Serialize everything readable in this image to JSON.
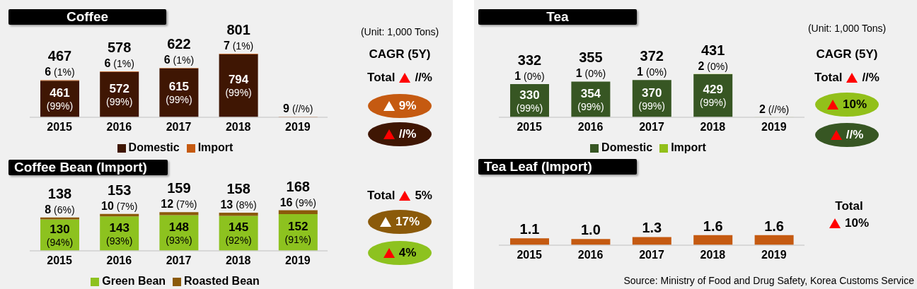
{
  "chart_data": [
    {
      "type": "bar",
      "title": "Coffee",
      "stacked": true,
      "legend": "bottom",
      "categories": [
        "2015",
        "2016",
        "2017",
        "2018",
        "2019"
      ],
      "series": [
        {
          "name": "Domestic",
          "color": "#3f1603",
          "values": [
            461,
            572,
            615,
            794,
            null
          ],
          "value_labels": [
            "461 (99%)",
            "572 (99%)",
            "615 (99%)",
            "794 (99%)",
            null
          ]
        },
        {
          "name": "Import",
          "color": "#c55a11",
          "values": [
            6,
            6,
            6,
            7,
            9
          ],
          "value_labels": [
            "6 (1%)",
            "6 (1%)",
            "6 (1%)",
            "7 (1%)",
            "9 (//%)"
          ]
        }
      ],
      "totals": [
        "467",
        "578",
        "622",
        "801",
        null
      ],
      "annotations": [
        "(Unit: 1,000 Tons)",
        "CAGR (5Y)",
        "Total",
        "//%",
        "9%",
        "//%"
      ]
    },
    {
      "type": "bar",
      "title": "Tea",
      "stacked": true,
      "legend": "bottom",
      "categories": [
        "2015",
        "2016",
        "2017",
        "2018",
        "2019"
      ],
      "series": [
        {
          "name": "Domestic",
          "color": "#375623",
          "values": [
            330,
            354,
            370,
            429,
            null
          ],
          "value_labels": [
            "330 (99%)",
            "354 (99%)",
            "370 (99%)",
            "429 (99%)",
            null
          ]
        },
        {
          "name": "Import",
          "color": "#92c01a",
          "values": [
            1,
            1,
            1,
            2,
            2
          ],
          "value_labels": [
            "1 (0%)",
            "1 (0%)",
            "1 (0%)",
            "2 (0%)",
            "2 (//%)"
          ]
        }
      ],
      "totals": [
        "332",
        "355",
        "372",
        "431",
        null
      ],
      "annotations": [
        "(Unit: 1,000 Tons)",
        "CAGR (5Y)",
        "Total",
        "//%",
        "10%",
        "//%"
      ]
    },
    {
      "type": "bar",
      "title": "Coffee Bean (Import)",
      "stacked": true,
      "legend": "bottom",
      "categories": [
        "2015",
        "2016",
        "2017",
        "2018",
        "2019"
      ],
      "series": [
        {
          "name": "Green Bean",
          "color": "#8dc21f",
          "values": [
            130,
            143,
            148,
            145,
            152
          ],
          "value_labels": [
            "130 (94%)",
            "143 (93%)",
            "148 (93%)",
            "145 (92%)",
            "152 (91%)"
          ]
        },
        {
          "name": "Roasted Bean",
          "color": "#8b5a0a",
          "values": [
            8,
            10,
            12,
            13,
            16
          ],
          "value_labels": [
            "8 (6%)",
            "10 (7%)",
            "12 (7%)",
            "13 (8%)",
            "16 (9%)"
          ]
        }
      ],
      "totals": [
        "138",
        "153",
        "159",
        "158",
        "168"
      ],
      "annotations": [
        "Total",
        "5%",
        "17%",
        "4%"
      ]
    },
    {
      "type": "bar",
      "title": "Tea Leaf (Import)",
      "categories": [
        "2015",
        "2016",
        "2017",
        "2018",
        "2019"
      ],
      "values": [
        1.1,
        1.0,
        1.3,
        1.6,
        1.6
      ],
      "color": "#c55a11",
      "value_labels": [
        "1.1",
        "1.0",
        "1.3",
        "1.6",
        "1.6"
      ],
      "annotations": [
        "Total",
        "10%",
        "Source: Ministry of Food and Drug Safety, Korea Customs Service"
      ]
    }
  ]
}
